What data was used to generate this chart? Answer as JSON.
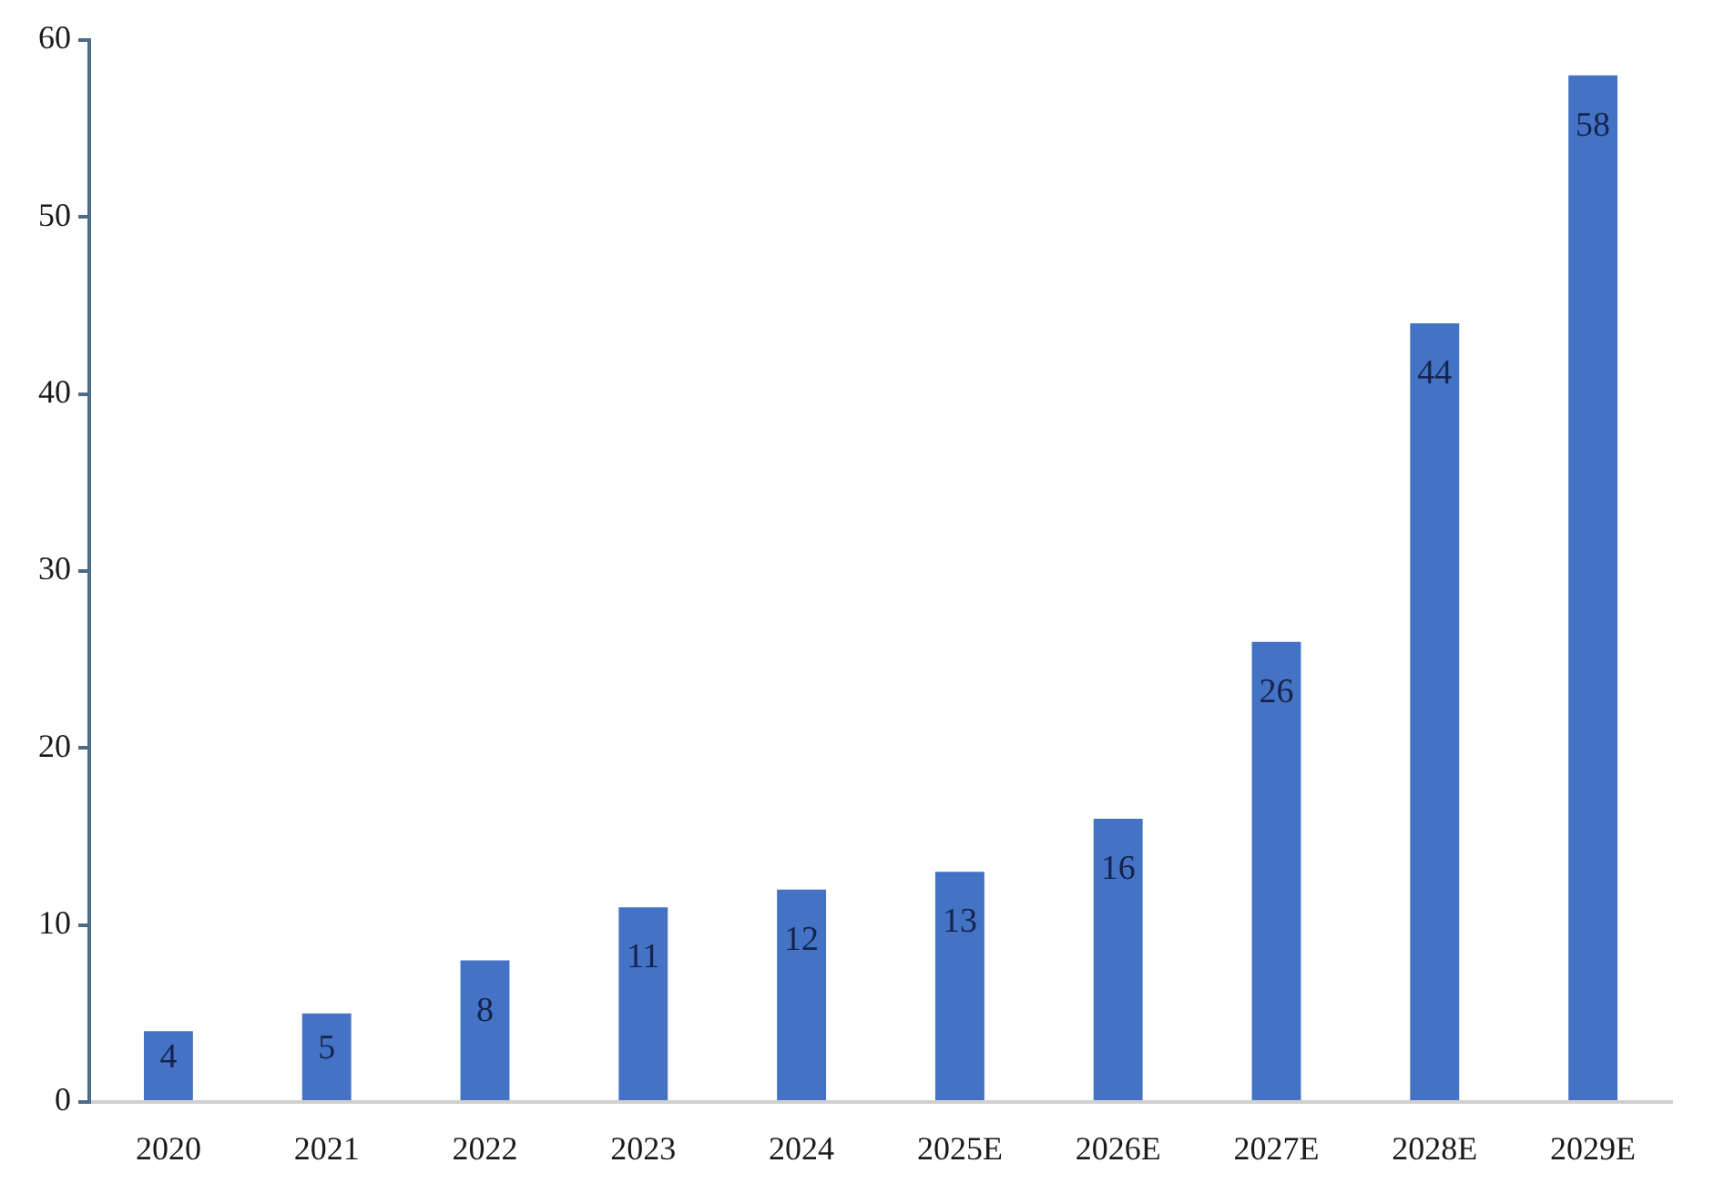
{
  "chart_data": {
    "type": "bar",
    "categories": [
      "2020",
      "2021",
      "2022",
      "2023",
      "2024",
      "2025E",
      "2026E",
      "2027E",
      "2028E",
      "2029E"
    ],
    "values": [
      4,
      5,
      8,
      11,
      12,
      13,
      16,
      26,
      44,
      58
    ],
    "color": "#4472c4",
    "ylim": [
      0,
      60
    ],
    "yticks": [
      0,
      10,
      20,
      30,
      40,
      50,
      60
    ],
    "grid": false,
    "data_labels": true
  }
}
